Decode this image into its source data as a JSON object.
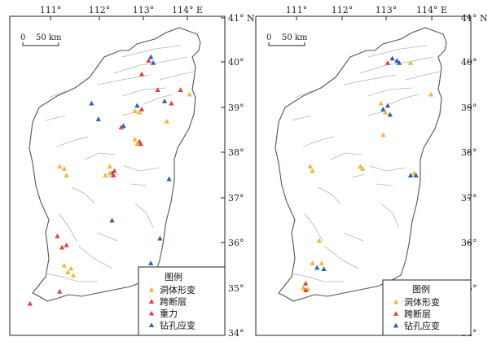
{
  "axes": {
    "lon_ticks": [
      "111°",
      "112°",
      "113°",
      "114° E"
    ],
    "lat_ticks": [
      "41° N",
      "40°",
      "39°",
      "38°",
      "37°",
      "36°",
      "35°",
      "34°"
    ]
  },
  "scale_bar": {
    "zero": "0",
    "label": "50 km"
  },
  "colors": {
    "deformation": "#f2b63a",
    "cross_fault": "#e3423a",
    "gravity": "#e33a57",
    "borehole": "#2f5fb0",
    "outline": "#555555",
    "fault": "#b5b5b5"
  },
  "icons": {
    "station": "triangle-icon"
  },
  "maps": [
    {
      "legend": {
        "title": "图例",
        "items": [
          {
            "key": "deformation",
            "label": "洞体形变"
          },
          {
            "key": "cross_fault",
            "label": "跨断层"
          },
          {
            "key": "gravity",
            "label": "重力"
          },
          {
            "key": "borehole",
            "label": "钻孔应变"
          }
        ]
      },
      "stations": [
        {
          "type": "borehole",
          "lon": 113.2,
          "lat": 40.13
        },
        {
          "type": "cross_fault",
          "lon": 113.15,
          "lat": 40.05
        },
        {
          "type": "borehole",
          "lon": 113.25,
          "lat": 40.0
        },
        {
          "type": "cross_fault",
          "lon": 113.0,
          "lat": 39.75
        },
        {
          "type": "borehole",
          "lon": 111.9,
          "lat": 39.1
        },
        {
          "type": "borehole",
          "lon": 112.05,
          "lat": 38.75
        },
        {
          "type": "cross_fault",
          "lon": 113.35,
          "lat": 39.4
        },
        {
          "type": "cross_fault",
          "lon": 113.85,
          "lat": 39.4
        },
        {
          "type": "deformation",
          "lon": 114.05,
          "lat": 39.3
        },
        {
          "type": "borehole",
          "lon": 113.5,
          "lat": 39.15
        },
        {
          "type": "cross_fault",
          "lon": 113.65,
          "lat": 39.1
        },
        {
          "type": "borehole",
          "lon": 112.9,
          "lat": 39.05
        },
        {
          "type": "cross_fault",
          "lon": 113.0,
          "lat": 38.97
        },
        {
          "type": "deformation",
          "lon": 112.85,
          "lat": 38.93
        },
        {
          "type": "deformation",
          "lon": 112.95,
          "lat": 38.9
        },
        {
          "type": "borehole",
          "lon": 112.6,
          "lat": 38.6
        },
        {
          "type": "cross_fault",
          "lon": 112.55,
          "lat": 38.57
        },
        {
          "type": "deformation",
          "lon": 113.55,
          "lat": 38.7
        },
        {
          "type": "deformation",
          "lon": 112.85,
          "lat": 38.3
        },
        {
          "type": "cross_fault",
          "lon": 112.95,
          "lat": 38.25
        },
        {
          "type": "deformation",
          "lon": 112.9,
          "lat": 38.2
        },
        {
          "type": "cross_fault",
          "lon": 112.98,
          "lat": 38.2
        },
        {
          "type": "deformation",
          "lon": 111.2,
          "lat": 37.7
        },
        {
          "type": "deformation",
          "lon": 111.3,
          "lat": 37.65
        },
        {
          "type": "deformation",
          "lon": 111.35,
          "lat": 37.5
        },
        {
          "type": "deformation",
          "lon": 112.3,
          "lat": 37.7
        },
        {
          "type": "deformation",
          "lon": 112.2,
          "lat": 37.5
        },
        {
          "type": "borehole",
          "lon": 112.35,
          "lat": 37.55
        },
        {
          "type": "cross_fault",
          "lon": 112.4,
          "lat": 37.6
        },
        {
          "type": "gravity",
          "lon": 112.38,
          "lat": 37.5
        },
        {
          "type": "deformation",
          "lon": 112.3,
          "lat": 37.55
        },
        {
          "type": "borehole",
          "lon": 113.6,
          "lat": 37.42
        },
        {
          "type": "borehole",
          "lon": 112.35,
          "lat": 36.5
        },
        {
          "type": "borehole",
          "lon": 113.4,
          "lat": 36.1
        },
        {
          "type": "cross_fault",
          "lon": 111.15,
          "lat": 36.15
        },
        {
          "type": "cross_fault",
          "lon": 111.35,
          "lat": 35.95
        },
        {
          "type": "cross_fault",
          "lon": 111.25,
          "lat": 35.9
        },
        {
          "type": "deformation",
          "lon": 111.3,
          "lat": 35.5
        },
        {
          "type": "deformation",
          "lon": 111.45,
          "lat": 35.43
        },
        {
          "type": "deformation",
          "lon": 111.38,
          "lat": 35.35
        },
        {
          "type": "deformation",
          "lon": 111.5,
          "lat": 35.28
        },
        {
          "type": "borehole",
          "lon": 113.2,
          "lat": 35.55
        },
        {
          "type": "cross_fault",
          "lon": 111.2,
          "lat": 34.92
        },
        {
          "type": "cross_fault",
          "lon": 110.55,
          "lat": 34.65
        }
      ]
    },
    {
      "legend": {
        "title": "图例",
        "items": [
          {
            "key": "deformation",
            "label": "洞体形变"
          },
          {
            "key": "cross_fault",
            "label": "跨断层"
          },
          {
            "key": "borehole",
            "label": "钻孔应变"
          }
        ]
      },
      "stations": [
        {
          "type": "borehole",
          "lon": 113.1,
          "lat": 40.1
        },
        {
          "type": "borehole",
          "lon": 113.2,
          "lat": 40.05
        },
        {
          "type": "cross_fault",
          "lon": 113.0,
          "lat": 40.0
        },
        {
          "type": "borehole",
          "lon": 113.25,
          "lat": 40.0
        },
        {
          "type": "deformation",
          "lon": 113.5,
          "lat": 40.0
        },
        {
          "type": "deformation",
          "lon": 113.95,
          "lat": 39.3
        },
        {
          "type": "deformation",
          "lon": 112.85,
          "lat": 39.1
        },
        {
          "type": "borehole",
          "lon": 113.0,
          "lat": 39.05
        },
        {
          "type": "borehole",
          "lon": 112.9,
          "lat": 38.97
        },
        {
          "type": "deformation",
          "lon": 112.95,
          "lat": 38.9
        },
        {
          "type": "borehole",
          "lon": 113.05,
          "lat": 38.85
        },
        {
          "type": "deformation",
          "lon": 112.9,
          "lat": 38.4
        },
        {
          "type": "deformation",
          "lon": 111.3,
          "lat": 37.7
        },
        {
          "type": "deformation",
          "lon": 111.35,
          "lat": 37.6
        },
        {
          "type": "deformation",
          "lon": 112.4,
          "lat": 37.7
        },
        {
          "type": "deformation",
          "lon": 112.45,
          "lat": 37.65
        },
        {
          "type": "borehole",
          "lon": 113.5,
          "lat": 37.5
        },
        {
          "type": "deformation",
          "lon": 113.58,
          "lat": 37.55
        },
        {
          "type": "borehole",
          "lon": 113.62,
          "lat": 37.5
        },
        {
          "type": "deformation",
          "lon": 111.5,
          "lat": 36.05
        },
        {
          "type": "deformation",
          "lon": 111.35,
          "lat": 35.55
        },
        {
          "type": "deformation",
          "lon": 111.55,
          "lat": 35.55
        },
        {
          "type": "borehole",
          "lon": 111.45,
          "lat": 35.45
        },
        {
          "type": "borehole",
          "lon": 111.6,
          "lat": 35.42
        },
        {
          "type": "cross_fault",
          "lon": 111.2,
          "lat": 35.1
        },
        {
          "type": "deformation",
          "lon": 111.15,
          "lat": 35.0
        },
        {
          "type": "deformation",
          "lon": 111.25,
          "lat": 34.97
        },
        {
          "type": "cross_fault",
          "lon": 111.2,
          "lat": 34.95
        }
      ]
    }
  ]
}
